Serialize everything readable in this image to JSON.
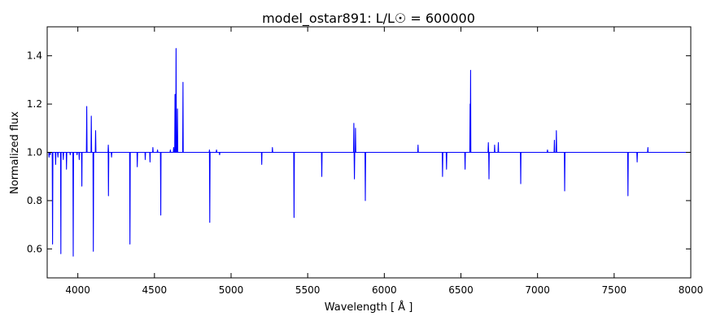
{
  "chart_data": {
    "type": "line",
    "title": "model_ostar891: L/L☉ = 600000",
    "xlabel": "Wavelength [ Å ]",
    "ylabel": "Normalized flux",
    "xlim": [
      3800,
      8000
    ],
    "ylim": [
      0.48,
      1.52
    ],
    "x_ticks": [
      4000,
      4500,
      5000,
      5500,
      6000,
      6500,
      7000,
      7500,
      8000
    ],
    "y_ticks": [
      0.6,
      0.8,
      1.0,
      1.2,
      1.4
    ],
    "x_tick_labels": [
      "4000",
      "4500",
      "5000",
      "5500",
      "6000",
      "6500",
      "7000",
      "7500",
      "8000"
    ],
    "y_tick_labels": [
      "0.6",
      "0.8",
      "1.0",
      "1.2",
      "1.4"
    ],
    "grid": false,
    "legend": "none",
    "series": [
      {
        "color": "#0000ff",
        "continuum": 1.0,
        "features": [
          {
            "x": 3812,
            "y": 0.98
          },
          {
            "x": 3820,
            "y": 0.99
          },
          {
            "x": 3835,
            "y": 0.62
          },
          {
            "x": 3855,
            "y": 0.95
          },
          {
            "x": 3870,
            "y": 0.98
          },
          {
            "x": 3889,
            "y": 0.58
          },
          {
            "x": 3905,
            "y": 0.97
          },
          {
            "x": 3926,
            "y": 0.93
          },
          {
            "x": 3950,
            "y": 0.99
          },
          {
            "x": 3970,
            "y": 0.57
          },
          {
            "x": 3995,
            "y": 0.99
          },
          {
            "x": 4009,
            "y": 0.97
          },
          {
            "x": 4026,
            "y": 0.86
          },
          {
            "x": 4058,
            "y": 1.19
          },
          {
            "x": 4088,
            "y": 1.15
          },
          {
            "x": 4101,
            "y": 0.59
          },
          {
            "x": 4116,
            "y": 1.09
          },
          {
            "x": 4200,
            "y": 0.82
          },
          {
            "x": 4199,
            "y": 1.03
          },
          {
            "x": 4220,
            "y": 0.98
          },
          {
            "x": 4340,
            "y": 0.62
          },
          {
            "x": 4388,
            "y": 0.94
          },
          {
            "x": 4440,
            "y": 0.97
          },
          {
            "x": 4471,
            "y": 0.96
          },
          {
            "x": 4490,
            "y": 1.02
          },
          {
            "x": 4520,
            "y": 1.01
          },
          {
            "x": 4541,
            "y": 0.74
          },
          {
            "x": 4604,
            "y": 1.01
          },
          {
            "x": 4625,
            "y": 1.02
          },
          {
            "x": 4634,
            "y": 1.24
          },
          {
            "x": 4641,
            "y": 1.43
          },
          {
            "x": 4650,
            "y": 1.18
          },
          {
            "x": 4686,
            "y": 1.29
          },
          {
            "x": 4861,
            "y": 0.71
          },
          {
            "x": 4859,
            "y": 1.01
          },
          {
            "x": 4905,
            "y": 1.01
          },
          {
            "x": 4925,
            "y": 0.99
          },
          {
            "x": 5200,
            "y": 0.95
          },
          {
            "x": 5270,
            "y": 1.02
          },
          {
            "x": 5411,
            "y": 0.73
          },
          {
            "x": 5592,
            "y": 0.9
          },
          {
            "x": 5801,
            "y": 1.12
          },
          {
            "x": 5812,
            "y": 1.1
          },
          {
            "x": 5805,
            "y": 0.89
          },
          {
            "x": 5876,
            "y": 0.8
          },
          {
            "x": 6220,
            "y": 1.03
          },
          {
            "x": 6380,
            "y": 0.9
          },
          {
            "x": 6406,
            "y": 0.93
          },
          {
            "x": 6527,
            "y": 0.93
          },
          {
            "x": 6560,
            "y": 1.2
          },
          {
            "x": 6563,
            "y": 1.34
          },
          {
            "x": 6679,
            "y": 1.04
          },
          {
            "x": 6683,
            "y": 0.89
          },
          {
            "x": 6720,
            "y": 1.03
          },
          {
            "x": 6744,
            "y": 1.04
          },
          {
            "x": 6890,
            "y": 0.87
          },
          {
            "x": 7065,
            "y": 1.01
          },
          {
            "x": 7110,
            "y": 1.05
          },
          {
            "x": 7123,
            "y": 1.09
          },
          {
            "x": 7177,
            "y": 0.84
          },
          {
            "x": 7590,
            "y": 0.82
          },
          {
            "x": 7650,
            "y": 0.96
          },
          {
            "x": 7720,
            "y": 1.02
          }
        ]
      }
    ]
  }
}
